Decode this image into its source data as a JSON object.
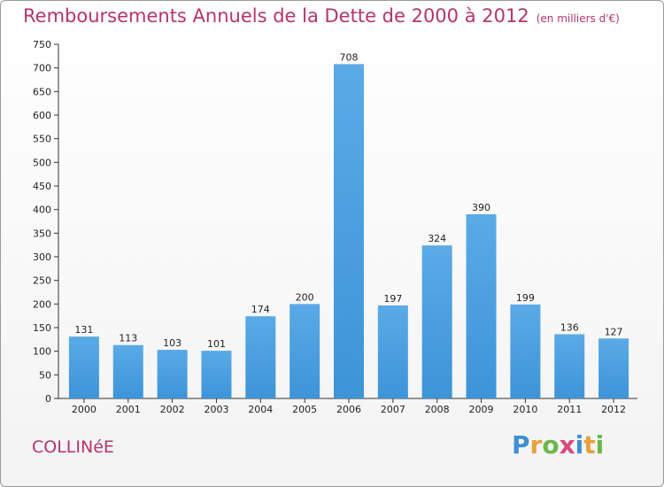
{
  "chart_data": {
    "type": "bar",
    "title": "Remboursements Annuels de la Dette de 2000 à 2012",
    "subtitle": "(en milliers d'€)",
    "categories": [
      "2000",
      "2001",
      "2002",
      "2003",
      "2004",
      "2005",
      "2006",
      "2007",
      "2008",
      "2009",
      "2010",
      "2011",
      "2012"
    ],
    "values": [
      131,
      113,
      103,
      101,
      174,
      200,
      708,
      197,
      324,
      390,
      199,
      136,
      127
    ],
    "ylim": [
      0,
      750
    ],
    "yticks": [
      0,
      50,
      100,
      150,
      200,
      250,
      300,
      350,
      400,
      450,
      500,
      550,
      600,
      650,
      700,
      750
    ],
    "grid": false,
    "bar_color": "#3d94d8",
    "bar_color_light": "#5aaae6"
  },
  "commune": "COLLINéE",
  "logo": {
    "letters": [
      "P",
      "r",
      "o",
      "x",
      "i",
      "t",
      "i"
    ],
    "colors": [
      "#3f8fd2",
      "#e8a23c",
      "#6bb84a",
      "#d94a7a",
      "#3f8fd2",
      "#e8a23c",
      "#6bb84a"
    ]
  }
}
